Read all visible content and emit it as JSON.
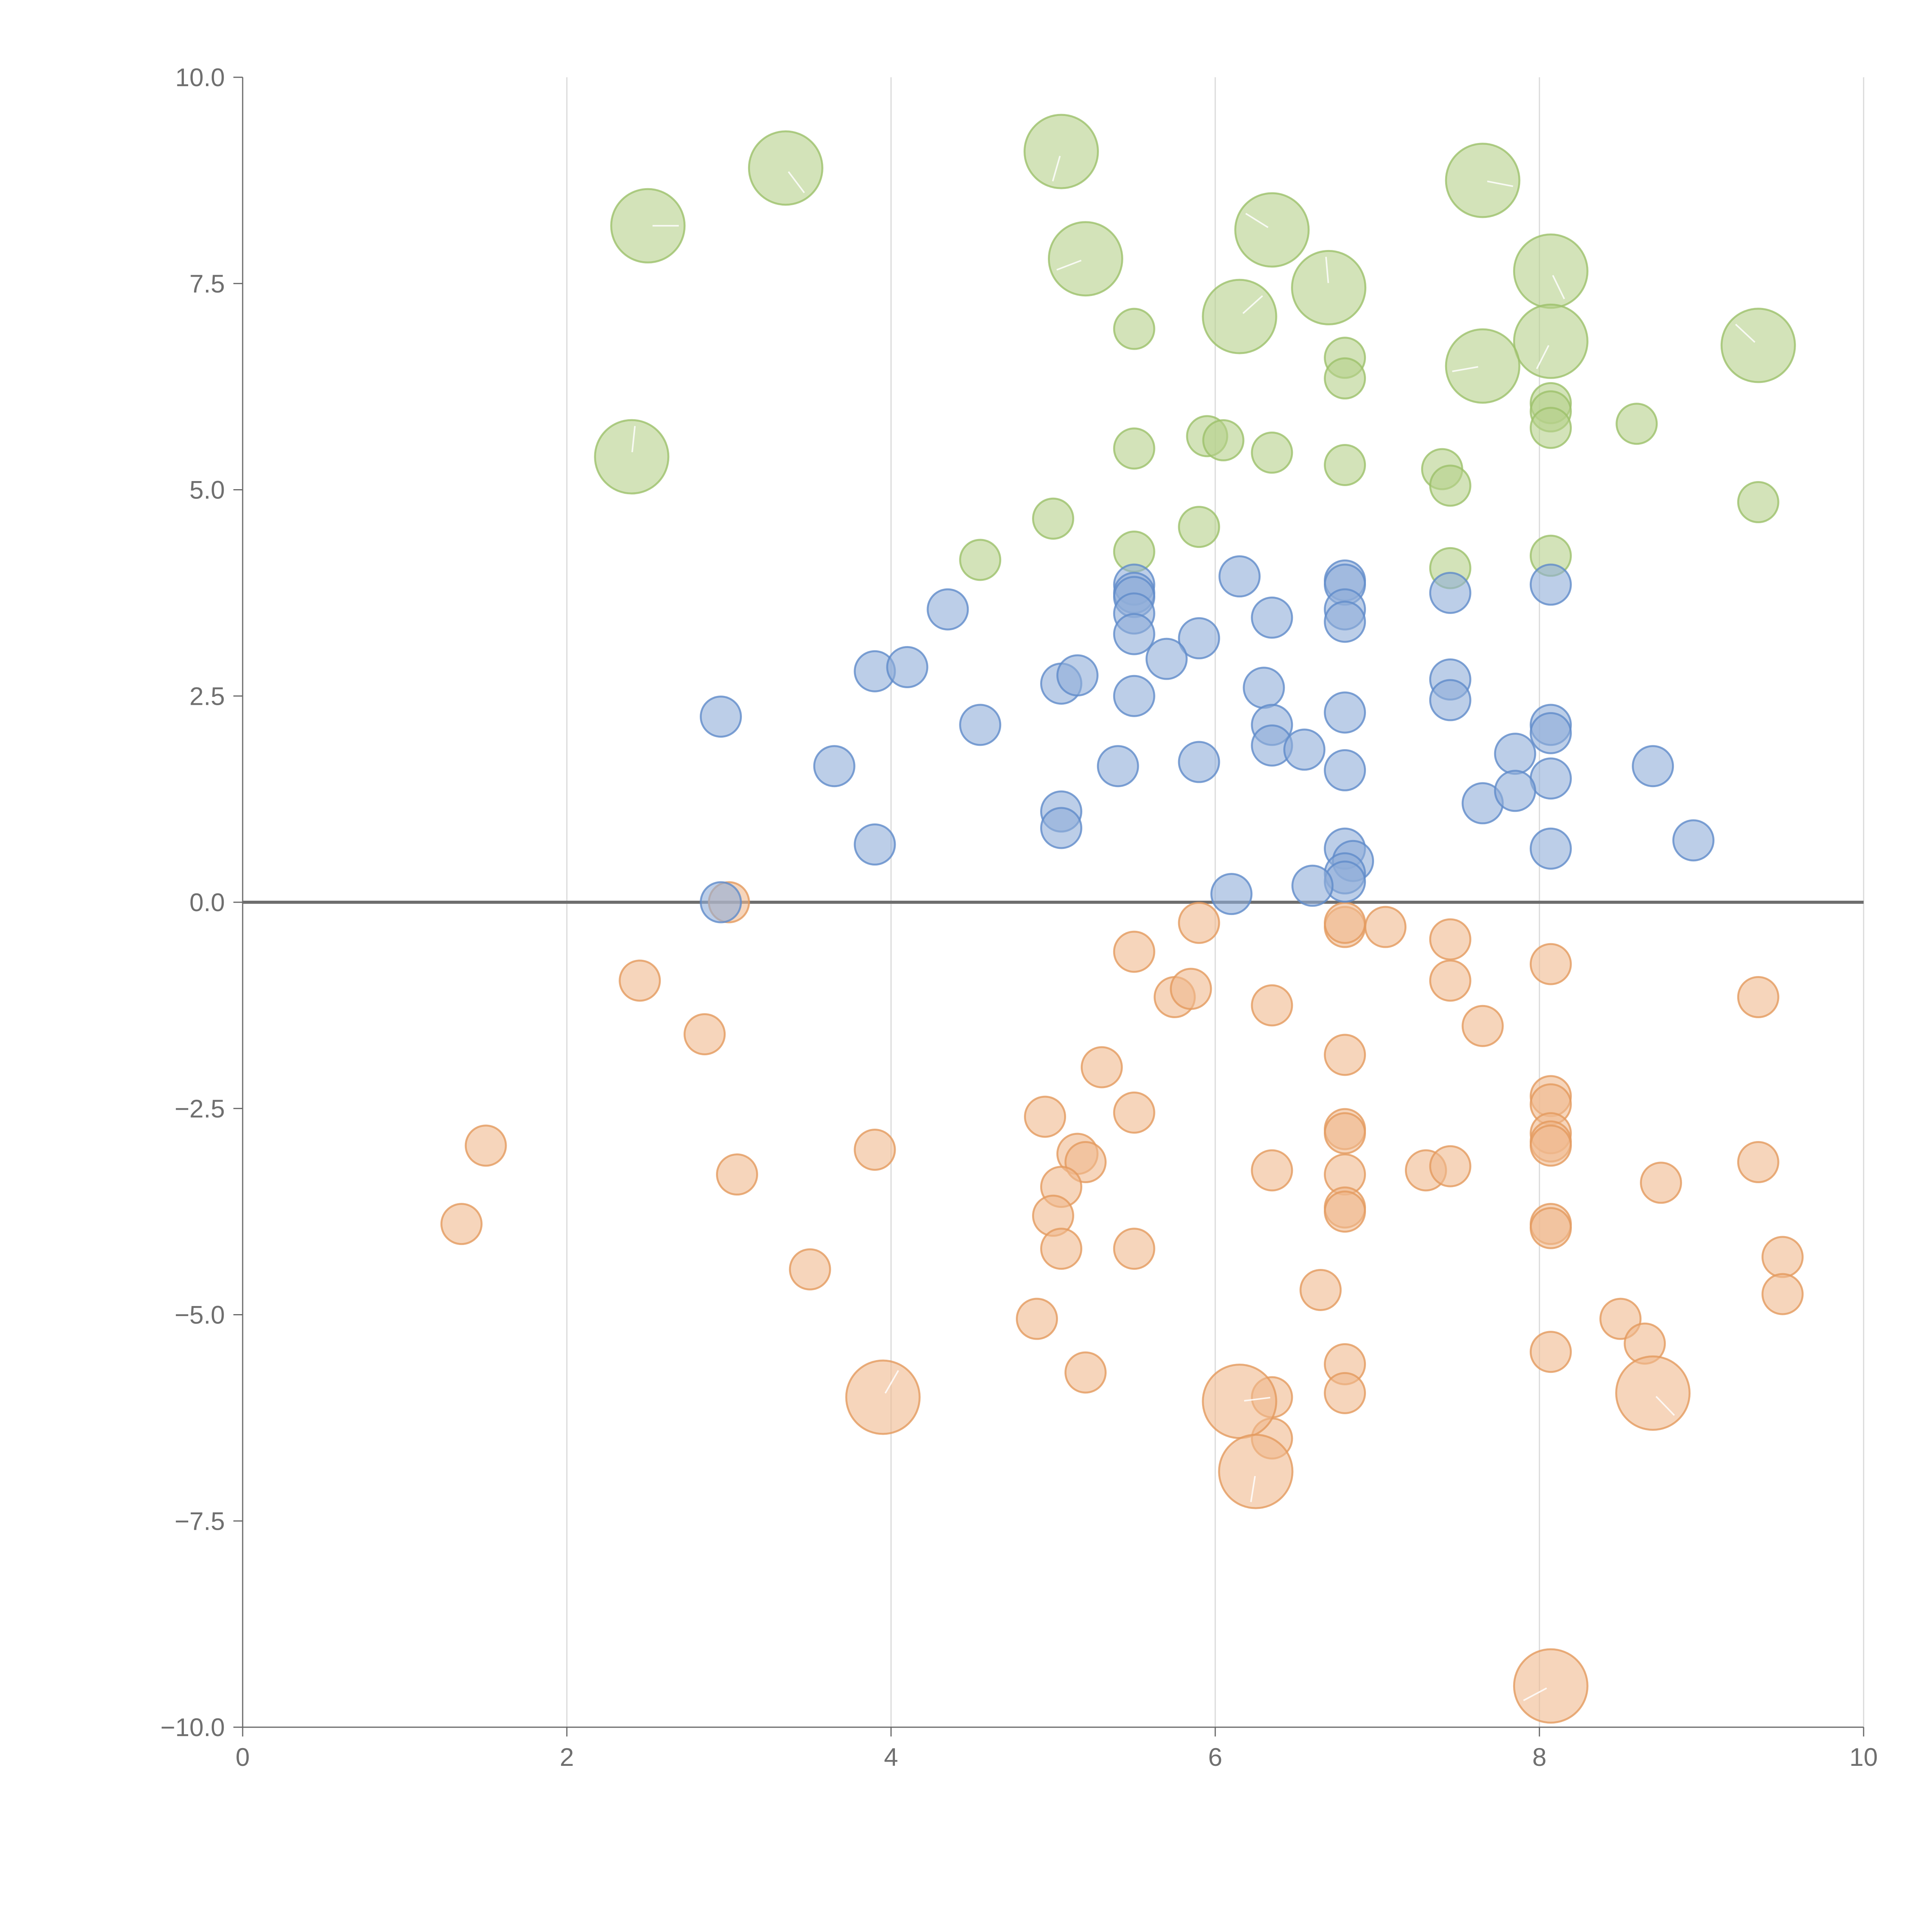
{
  "chart_data": {
    "type": "scatter",
    "title": "",
    "xlabel": "",
    "ylabel": "",
    "xlim": [
      0,
      10
    ],
    "ylim": [
      -10,
      10
    ],
    "x_ticks": [
      0,
      2,
      4,
      6,
      8,
      10
    ],
    "y_ticks": [
      10,
      7.5,
      5,
      2.5,
      0,
      -2.5,
      -5,
      -7.5,
      -10
    ],
    "x_tick_labels": [
      "0",
      "2",
      "4",
      "6",
      "8",
      "10"
    ],
    "y_tick_labels": [
      "10.0",
      "7.5",
      "5.0",
      "2.5",
      "0.0",
      "−2.5",
      "−5.0",
      "−7.5",
      "−10.0"
    ],
    "grid": "vertical",
    "zero_line": true,
    "series": [
      {
        "name": "green",
        "color": "#b5d18a",
        "stroke": "#9cc06a",
        "points": [
          [
            2.5,
            8.2,
            2
          ],
          [
            3.35,
            8.9,
            2
          ],
          [
            5.05,
            9.1,
            2
          ],
          [
            5.2,
            7.8,
            2
          ],
          [
            6.35,
            8.15,
            2
          ],
          [
            6.7,
            7.45,
            2
          ],
          [
            6.15,
            7.1,
            2
          ],
          [
            7.65,
            8.75,
            2
          ],
          [
            8.07,
            7.65,
            2
          ],
          [
            8.07,
            6.8,
            2
          ],
          [
            7.65,
            6.5,
            2
          ],
          [
            9.35,
            6.75,
            2
          ],
          [
            2.4,
            5.4,
            2
          ],
          [
            5.5,
            6.95,
            1
          ],
          [
            6.8,
            6.6,
            1
          ],
          [
            6.8,
            6.35,
            1
          ],
          [
            8.07,
            6.05,
            1
          ],
          [
            8.07,
            5.95,
            1
          ],
          [
            8.07,
            5.75,
            1
          ],
          [
            8.6,
            5.8,
            1
          ],
          [
            5.5,
            5.5,
            1
          ],
          [
            5.95,
            5.65,
            1
          ],
          [
            6.05,
            5.6,
            1
          ],
          [
            6.35,
            5.45,
            1
          ],
          [
            6.8,
            5.3,
            1
          ],
          [
            7.4,
            5.25,
            1
          ],
          [
            7.45,
            5.05,
            1
          ],
          [
            5.0,
            4.65,
            1
          ],
          [
            5.9,
            4.55,
            1
          ],
          [
            9.35,
            4.85,
            1
          ],
          [
            4.55,
            4.15,
            1
          ],
          [
            5.5,
            4.25,
            1
          ],
          [
            7.45,
            4.05,
            1
          ],
          [
            8.07,
            4.2,
            1
          ]
        ]
      },
      {
        "name": "blue",
        "color": "#8fadd9",
        "stroke": "#5f8bc9",
        "points": [
          [
            5.5,
            3.85,
            1
          ],
          [
            5.5,
            3.75,
            1
          ],
          [
            5.5,
            3.7,
            1
          ],
          [
            5.5,
            3.5,
            1
          ],
          [
            5.5,
            3.25,
            1
          ],
          [
            6.15,
            3.95,
            1
          ],
          [
            6.8,
            3.9,
            1
          ],
          [
            6.8,
            3.85,
            1
          ],
          [
            6.8,
            3.55,
            1
          ],
          [
            6.8,
            3.4,
            1
          ],
          [
            7.45,
            3.75,
            1
          ],
          [
            8.07,
            3.85,
            1
          ],
          [
            4.35,
            3.55,
            1
          ],
          [
            6.35,
            3.45,
            1
          ],
          [
            5.9,
            3.2,
            1
          ],
          [
            5.7,
            2.95,
            1
          ],
          [
            3.9,
            2.8,
            1
          ],
          [
            4.1,
            2.85,
            1
          ],
          [
            5.05,
            2.65,
            1
          ],
          [
            5.15,
            2.75,
            1
          ],
          [
            6.3,
            2.6,
            1
          ],
          [
            7.45,
            2.7,
            1
          ],
          [
            7.45,
            2.45,
            1
          ],
          [
            5.5,
            2.5,
            1
          ],
          [
            2.95,
            2.25,
            1
          ],
          [
            4.55,
            2.15,
            1
          ],
          [
            6.35,
            2.15,
            1
          ],
          [
            6.8,
            2.3,
            1
          ],
          [
            8.07,
            2.15,
            1
          ],
          [
            8.07,
            2.05,
            1
          ],
          [
            3.65,
            1.65,
            1
          ],
          [
            5.4,
            1.65,
            1
          ],
          [
            5.9,
            1.7,
            1
          ],
          [
            6.35,
            1.9,
            1
          ],
          [
            6.55,
            1.85,
            1
          ],
          [
            6.8,
            1.6,
            1
          ],
          [
            7.85,
            1.8,
            1
          ],
          [
            8.7,
            1.65,
            1
          ],
          [
            8.07,
            1.5,
            1
          ],
          [
            7.65,
            1.2,
            1
          ],
          [
            7.85,
            1.35,
            1
          ],
          [
            5.05,
            1.1,
            1
          ],
          [
            5.05,
            0.9,
            1
          ],
          [
            3.9,
            0.7,
            1
          ],
          [
            6.8,
            0.65,
            1
          ],
          [
            6.85,
            0.5,
            1
          ],
          [
            6.8,
            0.35,
            1
          ],
          [
            6.8,
            0.25,
            1
          ],
          [
            6.6,
            0.2,
            1
          ],
          [
            8.07,
            0.65,
            1
          ],
          [
            8.95,
            0.75,
            1
          ],
          [
            6.1,
            0.1,
            1
          ],
          [
            2.95,
            0.0,
            1
          ]
        ]
      },
      {
        "name": "orange",
        "color": "#f0b98e",
        "stroke": "#e39a5e",
        "points": [
          [
            3.0,
            0.0,
            1
          ],
          [
            5.9,
            -0.25,
            1
          ],
          [
            6.8,
            -0.3,
            1
          ],
          [
            6.8,
            -0.25,
            1
          ],
          [
            7.05,
            -0.3,
            1
          ],
          [
            7.45,
            -0.45,
            1
          ],
          [
            5.5,
            -0.6,
            1
          ],
          [
            8.07,
            -0.75,
            1
          ],
          [
            2.45,
            -0.95,
            1
          ],
          [
            5.75,
            -1.15,
            1
          ],
          [
            5.85,
            -1.05,
            1
          ],
          [
            7.45,
            -0.95,
            1
          ],
          [
            9.35,
            -1.15,
            1
          ],
          [
            6.35,
            -1.25,
            1
          ],
          [
            7.65,
            -1.5,
            1
          ],
          [
            2.85,
            -1.6,
            1
          ],
          [
            6.8,
            -1.85,
            1
          ],
          [
            5.3,
            -2.0,
            1
          ],
          [
            8.07,
            -2.35,
            1
          ],
          [
            8.07,
            -2.45,
            1
          ],
          [
            5.5,
            -2.55,
            1
          ],
          [
            4.95,
            -2.6,
            1
          ],
          [
            6.8,
            -2.75,
            1
          ],
          [
            6.8,
            -2.8,
            1
          ],
          [
            8.07,
            -2.8,
            1
          ],
          [
            8.07,
            -2.9,
            1
          ],
          [
            8.07,
            -2.95,
            1
          ],
          [
            1.5,
            -2.95,
            1
          ],
          [
            3.9,
            -3.0,
            1
          ],
          [
            5.15,
            -3.05,
            1
          ],
          [
            5.2,
            -3.15,
            1
          ],
          [
            9.35,
            -3.15,
            1
          ],
          [
            3.05,
            -3.3,
            1
          ],
          [
            6.35,
            -3.25,
            1
          ],
          [
            7.3,
            -3.25,
            1
          ],
          [
            7.45,
            -3.2,
            1
          ],
          [
            6.8,
            -3.3,
            1
          ],
          [
            8.75,
            -3.4,
            1
          ],
          [
            5.05,
            -3.45,
            1
          ],
          [
            6.8,
            -3.7,
            1
          ],
          [
            6.8,
            -3.75,
            1
          ],
          [
            5.0,
            -3.8,
            1
          ],
          [
            1.35,
            -3.9,
            1
          ],
          [
            8.07,
            -3.9,
            1
          ],
          [
            8.07,
            -3.95,
            1
          ],
          [
            5.05,
            -4.2,
            1
          ],
          [
            5.5,
            -4.2,
            1
          ],
          [
            9.5,
            -4.3,
            1
          ],
          [
            3.5,
            -4.45,
            1
          ],
          [
            6.65,
            -4.7,
            1
          ],
          [
            9.5,
            -4.75,
            1
          ],
          [
            4.9,
            -5.05,
            1
          ],
          [
            8.5,
            -5.05,
            1
          ],
          [
            8.65,
            -5.35,
            1
          ],
          [
            8.07,
            -5.45,
            1
          ],
          [
            6.8,
            -5.6,
            1
          ],
          [
            5.2,
            -5.7,
            1
          ],
          [
            6.8,
            -5.95,
            1
          ],
          [
            6.35,
            -6.0,
            1
          ],
          [
            6.35,
            -6.5,
            1
          ],
          [
            3.95,
            -6.0,
            2
          ],
          [
            6.15,
            -6.05,
            2
          ],
          [
            8.7,
            -5.95,
            2
          ],
          [
            6.25,
            -6.9,
            2
          ],
          [
            8.07,
            -9.5,
            2
          ]
        ]
      }
    ]
  }
}
